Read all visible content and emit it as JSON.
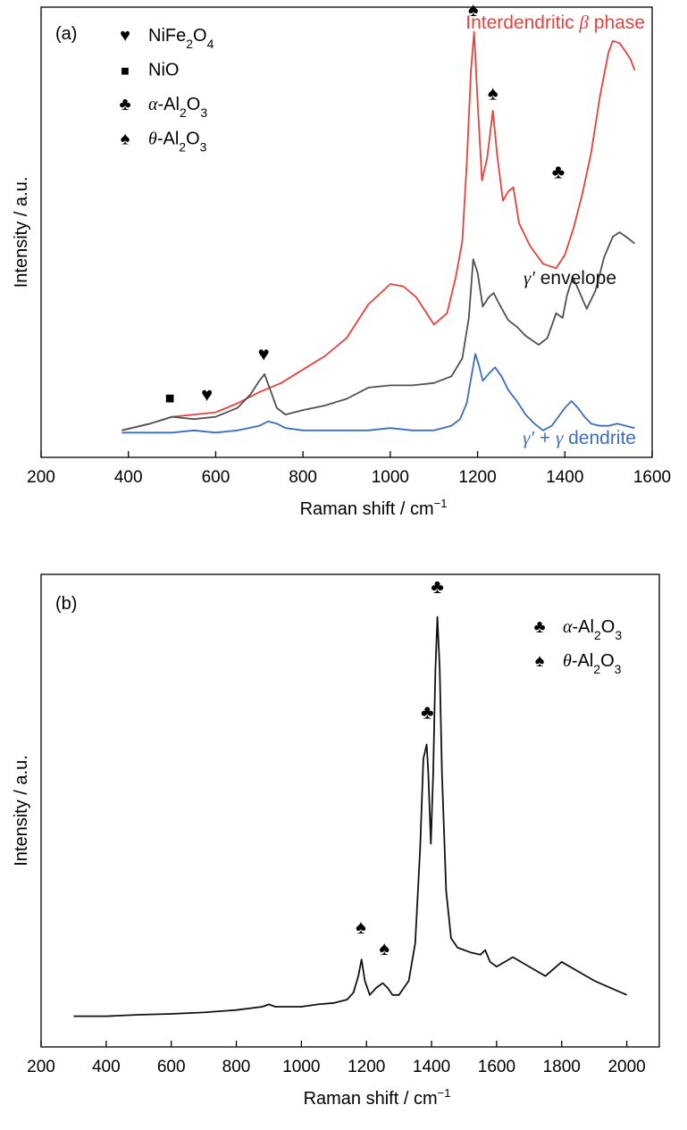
{
  "chart_data": [
    {
      "type": "line",
      "panel_label": "(a)",
      "xlabel": "Raman shift / cm",
      "xlabel_sup": "−1",
      "ylabel": "Intensity / a.u.",
      "xlim": [
        200,
        1600
      ],
      "ylim": [
        0,
        100
      ],
      "xticks": [
        200,
        400,
        600,
        800,
        1000,
        1200,
        1400,
        1600
      ],
      "grid": false,
      "legend_position": "top-left",
      "legend": [
        {
          "symbol": "♥",
          "name": "heart",
          "parts": [
            {
              "t": "NiFe"
            },
            {
              "t": "2",
              "sub": true
            },
            {
              "t": "O"
            },
            {
              "t": "4",
              "sub": true
            }
          ]
        },
        {
          "symbol": "■",
          "name": "square",
          "parts": [
            {
              "t": "NiO"
            }
          ]
        },
        {
          "symbol": "♣",
          "name": "club",
          "parts": [
            {
              "t": "α",
              "it": true
            },
            {
              "t": "-Al"
            },
            {
              "t": "2",
              "sub": true
            },
            {
              "t": "O"
            },
            {
              "t": "3",
              "sub": true
            }
          ]
        },
        {
          "symbol": "♠",
          "name": "spade",
          "parts": [
            {
              "t": "θ",
              "it": true
            },
            {
              "t": "-Al"
            },
            {
              "t": "2",
              "sub": true
            },
            {
              "t": "O"
            },
            {
              "t": "3",
              "sub": true
            }
          ]
        }
      ],
      "series": [
        {
          "name": "Interdendritic β phase",
          "color": "#e8403a",
          "label_parts": [
            {
              "t": "Interdendritic "
            },
            {
              "t": "β",
              "it": true
            },
            {
              "t": " phase"
            }
          ],
          "x": [
            385,
            450,
            500,
            550,
            600,
            650,
            700,
            750,
            800,
            850,
            900,
            950,
            1000,
            1030,
            1060,
            1100,
            1130,
            1150,
            1165,
            1175,
            1185,
            1192,
            1200,
            1210,
            1222,
            1235,
            1245,
            1258,
            1270,
            1282,
            1295,
            1320,
            1350,
            1380,
            1400,
            1420,
            1440,
            1460,
            1480,
            1500,
            1510,
            1525,
            1540,
            1550,
            1560
          ],
          "y": [
            6,
            7.5,
            9,
            9.5,
            10,
            12,
            14.5,
            16.5,
            19.5,
            22.5,
            26.5,
            34,
            38.5,
            38,
            35.5,
            29.5,
            32,
            40,
            48,
            65,
            86,
            94.5,
            79,
            61.5,
            66.5,
            77,
            67,
            57,
            59,
            60,
            52,
            47,
            43,
            42,
            45,
            51,
            58.5,
            67.5,
            80,
            90,
            92.5,
            92,
            90,
            88.5,
            86
          ]
        },
        {
          "name": "γ′ envelope",
          "color": "#505050",
          "label_parts": [
            {
              "t": "γ′",
              "it": true
            },
            {
              "t": " envelope"
            }
          ],
          "x": [
            385,
            450,
            500,
            550,
            600,
            650,
            680,
            700,
            712,
            725,
            740,
            760,
            800,
            850,
            900,
            950,
            1000,
            1050,
            1100,
            1140,
            1165,
            1180,
            1190,
            1200,
            1212,
            1225,
            1237,
            1250,
            1270,
            1290,
            1310,
            1340,
            1360,
            1380,
            1395,
            1405,
            1418,
            1430,
            1450,
            1470,
            1490,
            1510,
            1525,
            1540,
            1560
          ],
          "y": [
            6,
            7.5,
            9,
            8.5,
            9,
            11,
            14,
            17,
            18.5,
            15,
            11,
            9.5,
            10.5,
            11.5,
            13,
            15.5,
            16,
            16,
            16.5,
            18,
            22,
            31,
            44,
            41,
            33.5,
            35.5,
            36.5,
            34,
            30.5,
            29,
            27,
            25,
            26.5,
            32,
            31,
            36,
            40,
            37.5,
            33,
            37,
            44.5,
            49,
            50,
            49,
            47.5
          ]
        },
        {
          "name": "γ′ + γ dendrite",
          "color": "#3c6cc0",
          "label_parts": [
            {
              "t": "γ′",
              "it": true
            },
            {
              "t": " + "
            },
            {
              "t": "γ",
              "it": true
            },
            {
              "t": " dendrite"
            }
          ],
          "x": [
            385,
            450,
            500,
            550,
            600,
            650,
            700,
            720,
            740,
            760,
            800,
            850,
            900,
            950,
            1000,
            1050,
            1100,
            1140,
            1160,
            1175,
            1185,
            1195,
            1203,
            1212,
            1225,
            1240,
            1255,
            1270,
            1290,
            1310,
            1330,
            1350,
            1370,
            1385,
            1400,
            1415,
            1430,
            1445,
            1460,
            1480,
            1500,
            1520,
            1540,
            1560
          ],
          "y": [
            5.5,
            5.5,
            5.5,
            6,
            5.5,
            6,
            7,
            8,
            7.5,
            6.5,
            6,
            6,
            6,
            6,
            6.5,
            6,
            6,
            7,
            8.5,
            12,
            17.5,
            23,
            20.5,
            17,
            18.5,
            20,
            18,
            15,
            12.5,
            9.5,
            7.5,
            6,
            7,
            9,
            11,
            12.5,
            11,
            9,
            7.5,
            7,
            7,
            7.5,
            7,
            6.5
          ]
        }
      ],
      "annotations": [
        {
          "symbol": "■",
          "name": "nio-marker",
          "x": 495,
          "y": 12
        },
        {
          "symbol": "♥",
          "name": "nife2o4-marker-580",
          "x": 580,
          "y": 12.5
        },
        {
          "symbol": "♥",
          "name": "nife2o4-marker-710",
          "x": 710,
          "y": 21.5
        },
        {
          "symbol": "♠",
          "name": "theta-marker-1190",
          "x": 1190,
          "y": 98
        },
        {
          "symbol": "♠",
          "name": "theta-marker-1235",
          "x": 1235,
          "y": 79.5
        },
        {
          "symbol": "♣",
          "name": "alpha-marker-1385",
          "x": 1385,
          "y": 62
        }
      ]
    },
    {
      "type": "line",
      "panel_label": "(b)",
      "xlabel": "Raman shift / cm",
      "xlabel_sup": "−1",
      "ylabel": "Intensity / a.u.",
      "xlim": [
        200,
        2100
      ],
      "ylim": [
        0,
        100
      ],
      "xticks": [
        200,
        400,
        600,
        800,
        1000,
        1200,
        1400,
        1600,
        1800,
        2000
      ],
      "grid": false,
      "legend_position": "top-right",
      "legend": [
        {
          "symbol": "♣",
          "name": "club",
          "parts": [
            {
              "t": "α",
              "it": true
            },
            {
              "t": "-Al"
            },
            {
              "t": "2",
              "sub": true
            },
            {
              "t": "O"
            },
            {
              "t": "3",
              "sub": true
            }
          ]
        },
        {
          "symbol": "♠",
          "name": "spade",
          "parts": [
            {
              "t": "θ",
              "it": true
            },
            {
              "t": "-Al"
            },
            {
              "t": "2",
              "sub": true
            },
            {
              "t": "O"
            },
            {
              "t": "3",
              "sub": true
            }
          ]
        }
      ],
      "series": [
        {
          "name": "",
          "color": "#111111",
          "x": [
            300,
            400,
            500,
            600,
            700,
            800,
            880,
            900,
            920,
            1000,
            1050,
            1100,
            1140,
            1160,
            1175,
            1185,
            1195,
            1210,
            1230,
            1250,
            1265,
            1280,
            1300,
            1330,
            1350,
            1365,
            1375,
            1385,
            1390,
            1398,
            1405,
            1412,
            1418,
            1425,
            1432,
            1445,
            1460,
            1480,
            1520,
            1550,
            1565,
            1580,
            1600,
            1650,
            1700,
            1750,
            1800,
            1850,
            1900,
            1950,
            2000
          ],
          "y": [
            6.5,
            6.5,
            6.8,
            7,
            7.3,
            7.8,
            8.5,
            9,
            8.5,
            8.5,
            9,
            9.3,
            10,
            11.5,
            15,
            18.5,
            14,
            11,
            12.5,
            13.5,
            12.5,
            11,
            11,
            14,
            22,
            42,
            61,
            64,
            58,
            43,
            58,
            80,
            91,
            80,
            58,
            33,
            23,
            21,
            20,
            19.5,
            20.5,
            18,
            17,
            19,
            17,
            15,
            18,
            16,
            14,
            12.5,
            11
          ]
        }
      ],
      "annotations": [
        {
          "symbol": "♠",
          "name": "theta-marker-1185",
          "x": 1183,
          "y": 24
        },
        {
          "symbol": "♠",
          "name": "theta-marker-1250",
          "x": 1255,
          "y": 19.5
        },
        {
          "symbol": "♣",
          "name": "alpha-marker-1385",
          "x": 1387,
          "y": 69.5
        },
        {
          "symbol": "♣",
          "name": "alpha-marker-1418",
          "x": 1418,
          "y": 96
        }
      ]
    }
  ]
}
